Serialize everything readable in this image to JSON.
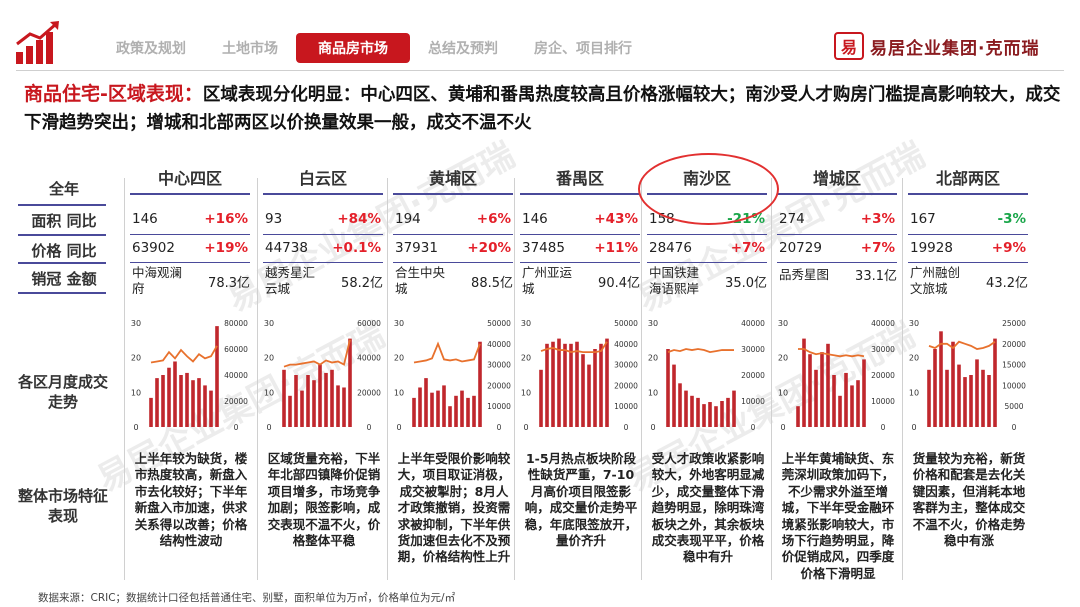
{
  "nav": {
    "items": [
      "政策及规划",
      "土地市场",
      "商品房市场",
      "总结及预判",
      "房企、项目排行"
    ],
    "active_index": 2
  },
  "brand": {
    "seal": "易",
    "name": "易居企业集团·克而瑞"
  },
  "headline": {
    "title": "商品住宅-区域表现：",
    "text": "区域表现分化明显：中心四区、黄埔和番禺热度较高且价格涨幅较大；南沙受人才购房门槛提高影响较大，成交下滑趋势突出；增城和北部两区以价换量效果一般，成交不温不火"
  },
  "row_labels": {
    "year": "全年",
    "area": "面积 同比",
    "price": "价格 同比",
    "top": "销冠 金额",
    "chart": "各区月度成交走势",
    "feature": "整体市场特征表现"
  },
  "watermark": "易居企业集团·克而瑞",
  "districts": [
    {
      "name": "中心四区",
      "area": "146",
      "area_chg": "+16%",
      "area_dir": "pos",
      "price": "63902",
      "price_chg": "+19%",
      "price_dir": "pos",
      "top_project": "中海观澜府",
      "top_amount": "78.3亿",
      "chart": {
        "left_axis": [
          "30",
          "20",
          "10",
          "0"
        ],
        "right_axis": [
          "80000",
          "60000",
          "40000",
          "20000",
          "0"
        ],
        "bars": [
          0.28,
          0.47,
          0.5,
          0.57,
          0.63,
          0.5,
          0.52,
          0.45,
          0.47,
          0.4,
          0.35,
          0.97
        ],
        "line": [
          0.62,
          0.63,
          0.64,
          0.72,
          0.66,
          0.74,
          0.68,
          0.63,
          0.7,
          0.66,
          0.68,
          0.78
        ]
      },
      "feature": "上半年较为缺货，楼市热度较高，新盘入市去化较好；下半年新盘入市加速，供求关系得以改善；价格结构性波动"
    },
    {
      "name": "白云区",
      "area": "93",
      "area_chg": "+84%",
      "area_dir": "pos",
      "price": "44738",
      "price_chg": "+0.1%",
      "price_dir": "pos",
      "top_project": "越秀星汇云城",
      "top_amount": "58.2亿",
      "chart": {
        "left_axis": [
          "30",
          "20",
          "10",
          "0"
        ],
        "right_axis": [
          "60000",
          "40000",
          "20000",
          "0"
        ],
        "bars": [
          0.55,
          0.3,
          0.5,
          0.35,
          0.5,
          0.45,
          0.6,
          0.52,
          0.55,
          0.4,
          0.38,
          0.85
        ],
        "line": [
          0.58,
          0.6,
          0.6,
          0.61,
          0.62,
          0.63,
          0.6,
          0.64,
          0.62,
          0.63,
          0.6,
          0.84
        ]
      },
      "feature": "区域货量充裕，下半年北部四镇降价促销项目增多，市场竞争加剧；限签影响，成交表现不温不火，价格整体平稳"
    },
    {
      "name": "黄埔区",
      "area": "194",
      "area_chg": "+6%",
      "area_dir": "pos",
      "price": "37931",
      "price_chg": "+20%",
      "price_dir": "pos",
      "top_project": "合生中央城",
      "top_amount": "88.5亿",
      "chart": {
        "left_axis": [
          "30",
          "20",
          "10",
          "0"
        ],
        "right_axis": [
          "50000",
          "40000",
          "30000",
          "20000",
          "10000",
          "0"
        ],
        "bars": [
          0.28,
          0.38,
          0.47,
          0.33,
          0.35,
          0.4,
          0.2,
          0.3,
          0.35,
          0.28,
          0.3,
          0.82
        ],
        "line": [
          0.62,
          0.63,
          0.64,
          0.66,
          0.8,
          0.65,
          0.64,
          0.65,
          0.63,
          0.64,
          0.65,
          0.8
        ]
      },
      "feature": "上半年受限价影响较大，项目取证消极，成交被掣肘；8月人才政策撤销，投资需求被抑制，下半年供货加速但去化不及预期，价格结构性上升"
    },
    {
      "name": "番禺区",
      "area": "146",
      "area_chg": "+43%",
      "area_dir": "pos",
      "price": "37485",
      "price_chg": "+11%",
      "price_dir": "pos",
      "top_project": "广州亚运城",
      "top_amount": "90.4亿",
      "chart": {
        "left_axis": [
          "30",
          "20",
          "10",
          "0"
        ],
        "right_axis": [
          "50000",
          "40000",
          "30000",
          "20000",
          "10000",
          "0"
        ],
        "bars": [
          0.55,
          0.8,
          0.82,
          0.85,
          0.8,
          0.8,
          0.82,
          0.7,
          0.6,
          0.75,
          0.8,
          0.85
        ],
        "line": [
          0.73,
          0.75,
          0.76,
          0.74,
          0.74,
          0.72,
          0.73,
          0.72,
          0.72,
          0.72,
          0.73,
          0.82
        ]
      },
      "feature": "1-5月热点板块阶段性缺货严重，7-10月高价项目限签影响，成交量价走势平稳，年底限签放开，量价齐升"
    },
    {
      "name": "南沙区",
      "area": "158",
      "area_chg": "-21%",
      "area_dir": "neg",
      "price": "28476",
      "price_chg": "+7%",
      "price_dir": "pos",
      "top_project": "中国铁建海语熙岸",
      "top_amount": "35.0亿",
      "chart": {
        "left_axis": [
          "30",
          "20",
          "10",
          "0"
        ],
        "right_axis": [
          "40000",
          "30000",
          "20000",
          "10000",
          "0"
        ],
        "bars": [
          0.75,
          0.6,
          0.42,
          0.35,
          0.3,
          0.28,
          0.22,
          0.24,
          0.2,
          0.25,
          0.28,
          0.35
        ],
        "line": [
          0.72,
          0.74,
          0.73,
          0.75,
          0.74,
          0.75,
          0.74,
          0.72,
          0.73,
          0.74,
          0.74,
          0.74
        ]
      },
      "feature": "受人才政策收紧影响较大，外地客明显减少，成交量整体下滑趋势明显，除明珠湾板块之外，其余板块成交表现平平，价格稳中有升"
    },
    {
      "name": "增城区",
      "area": "274",
      "area_chg": "+3%",
      "area_dir": "pos",
      "price": "20729",
      "price_chg": "+7%",
      "price_dir": "pos",
      "top_project": "品秀星图",
      "top_amount": "33.1亿",
      "chart": {
        "left_axis": [
          "30",
          "20",
          "10",
          "0"
        ],
        "right_axis": [
          "40000",
          "30000",
          "20000",
          "10000",
          "0"
        ],
        "bars": [
          0.2,
          0.85,
          0.7,
          0.55,
          0.72,
          0.8,
          0.5,
          0.3,
          0.52,
          0.4,
          0.45,
          0.65
        ],
        "line": [
          0.75,
          0.75,
          0.72,
          0.7,
          0.71,
          0.7,
          0.69,
          0.68,
          0.69,
          0.68,
          0.69,
          0.68
        ]
      },
      "feature": "上半年黄埔缺货、东莞深圳政策加码下，不少需求外溢至增城，下半年受金融环境紧张影响较大，市场下行趋势明显，降价促销成风，四季度价格下滑明显"
    },
    {
      "name": "北部两区",
      "area": "167",
      "area_chg": "-3%",
      "area_dir": "neg",
      "price": "19928",
      "price_chg": "+9%",
      "price_dir": "pos",
      "top_project": "广州融创文旅城",
      "top_amount": "43.2亿",
      "chart": {
        "left_axis": [
          "30",
          "20",
          "10",
          "0"
        ],
        "right_axis": [
          "25000",
          "20000",
          "15000",
          "10000",
          "5000",
          "0"
        ],
        "bars": [
          0.55,
          0.75,
          0.92,
          0.55,
          0.82,
          0.6,
          0.48,
          0.5,
          0.65,
          0.55,
          0.5,
          0.85
        ],
        "line": [
          0.78,
          0.76,
          0.8,
          0.8,
          0.76,
          0.82,
          0.8,
          0.78,
          0.75,
          0.76,
          0.78,
          0.82
        ]
      },
      "feature": "货量较为充裕，新货价格和配套是去化关键因素，但消耗本地客群为主，整体成交不温不火，价格走势稳中有涨"
    }
  ],
  "footer": "数据来源：CRIC；数据统计口径包括普通住宅、别墅，面积单位为万㎡，价格单位为元/㎡",
  "colors": {
    "accent": "#c8171e",
    "bar": "#c0272d",
    "line": "#e8712d",
    "positive": "#e4202a",
    "negative": "#1aa64a"
  }
}
